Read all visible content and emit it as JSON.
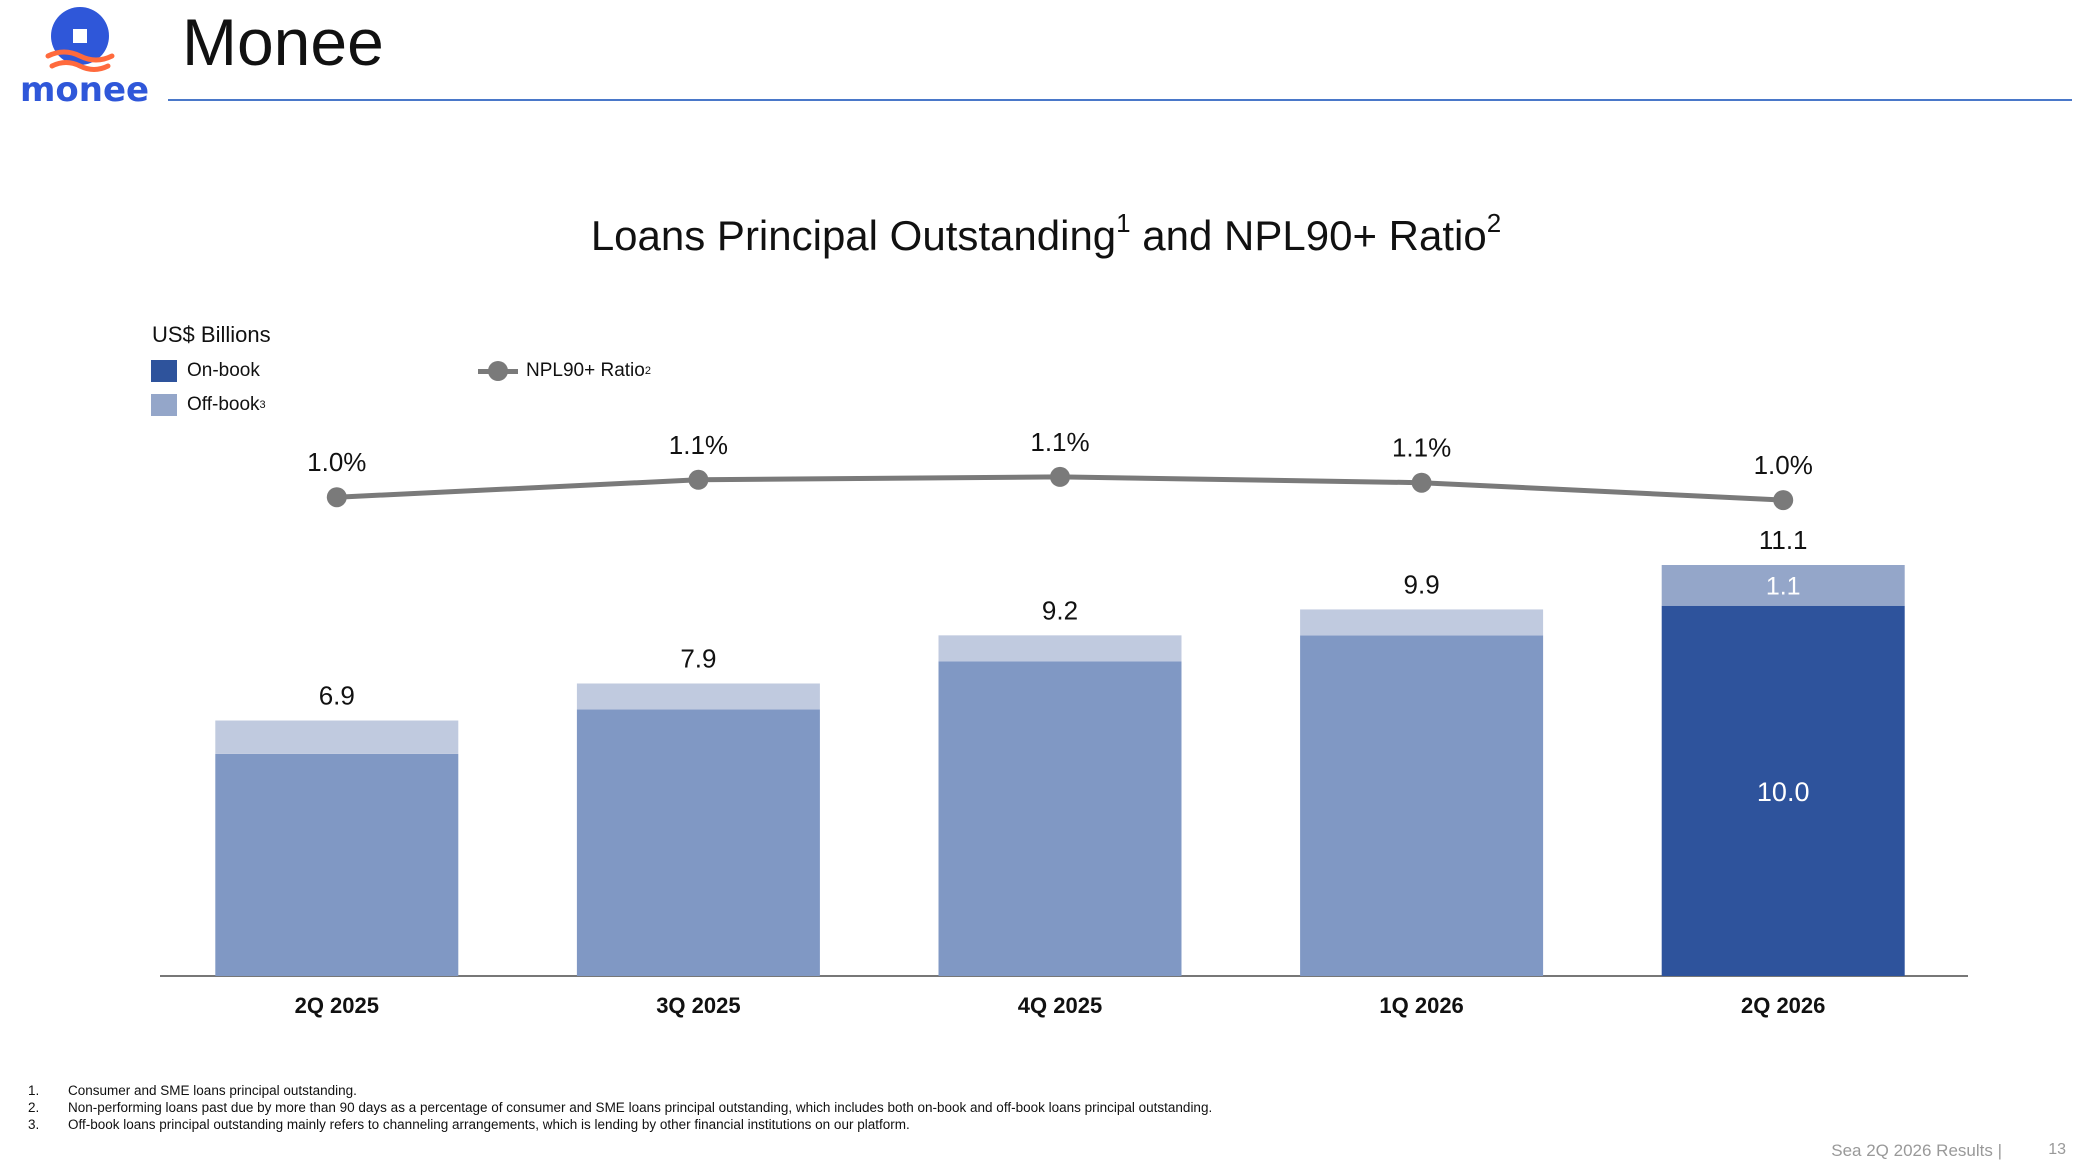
{
  "header": {
    "logo_text": "monee",
    "page_title": "Monee"
  },
  "chart_data": {
    "type": "bar",
    "title": "Loans Principal Outstanding",
    "title_sup1": "1",
    "title_mid": " and NPL90+ Ratio",
    "title_sup2": "2",
    "unit_label": "US$ Billions",
    "categories": [
      "2Q 2025",
      "3Q 2025",
      "4Q 2025",
      "1Q 2026",
      "2Q 2026"
    ],
    "stacked": true,
    "series": [
      {
        "name": "On-book",
        "values": [
          6.0,
          7.2,
          8.5,
          9.2,
          10.0
        ],
        "color_current": "#2e539c",
        "color_prior": "#8098c4"
      },
      {
        "name": "Off-book",
        "name_sup": "3",
        "values": [
          0.9,
          0.7,
          0.7,
          0.7,
          1.1
        ],
        "color_current": "#94a6c9",
        "color_prior": "#c0cadf"
      }
    ],
    "totals": [
      "6.9",
      "7.9",
      "9.2",
      "9.9",
      "11.1"
    ],
    "segment_labels_last": {
      "on_book": "10.0",
      "off_book": "1.1"
    },
    "line_series": {
      "name": "NPL90+ Ratio",
      "name_sup": "2",
      "values": [
        1.02,
        1.08,
        1.09,
        1.07,
        1.01
      ],
      "labels": [
        "1.0%",
        "1.1%",
        "1.1%",
        "1.1%",
        "1.0%"
      ],
      "color": "#7a7a7a"
    },
    "ylim": [
      0,
      11.1
    ],
    "legend_placement": "top-left",
    "grid": false
  },
  "footnotes": [
    {
      "num": "1.",
      "text": "Consumer and SME loans principal outstanding."
    },
    {
      "num": "2.",
      "text": "Non-performing loans past due by more than 90 days as a percentage of consumer and SME loans principal outstanding, which includes both on-book and off-book loans principal outstanding."
    },
    {
      "num": "3.",
      "text": "Off-book loans principal outstanding mainly refers to channeling arrangements, which is lending by other financial institutions on our platform."
    }
  ],
  "footer": {
    "text": "Sea 2Q 2026 Results |",
    "page_number": "13"
  }
}
